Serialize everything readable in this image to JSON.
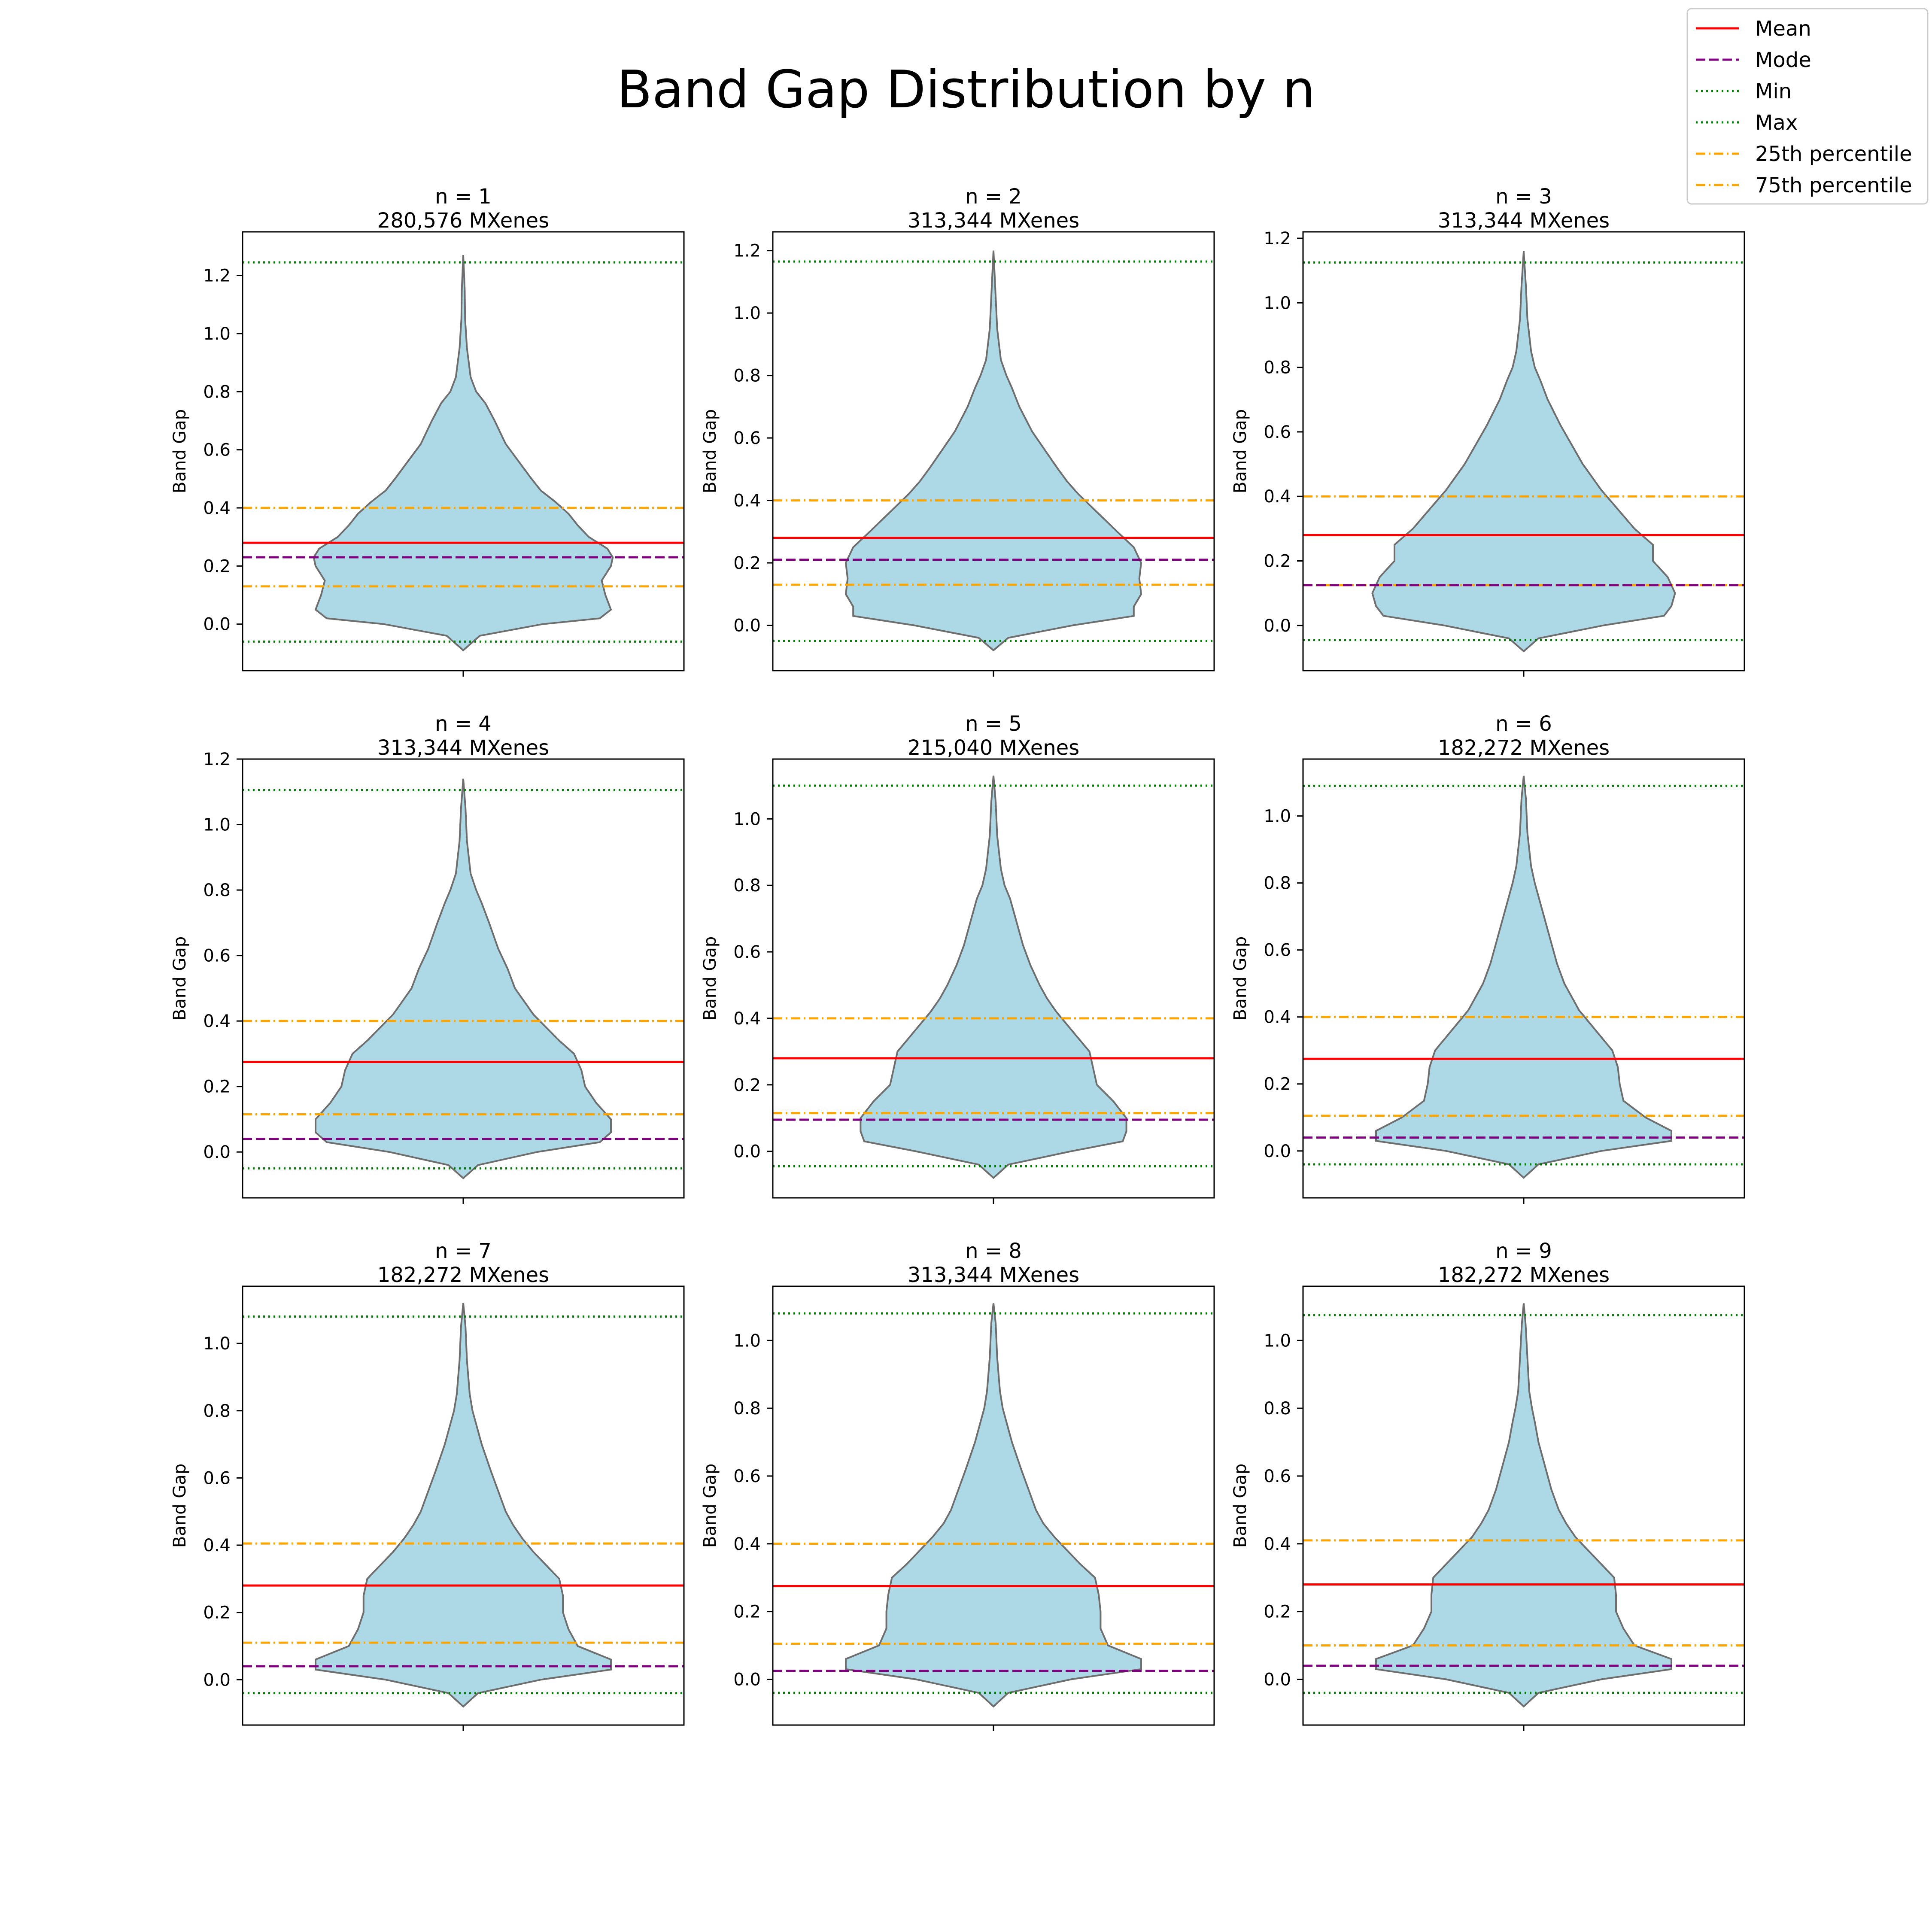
{
  "figure": {
    "title": "Band Gap Distribution by n"
  },
  "legend": {
    "placement": "top-right",
    "entries": [
      {
        "key": "mean",
        "label": "Mean",
        "color": "#ff0000",
        "style": "solid"
      },
      {
        "key": "mode",
        "label": "Mode",
        "color": "#800080",
        "style": "dashed"
      },
      {
        "key": "min",
        "label": "Min",
        "color": "#008000",
        "style": "dotted"
      },
      {
        "key": "max",
        "label": "Max",
        "color": "#008000",
        "style": "dotted"
      },
      {
        "key": "p25",
        "label": "25th percentile",
        "color": "#ffa500",
        "style": "dashdot"
      },
      {
        "key": "p75",
        "label": "75th percentile",
        "color": "#ffa500",
        "style": "dashdot"
      }
    ]
  },
  "colors": {
    "violin_fill": "#add8e6",
    "violin_edge": "#6e6e6e"
  },
  "chart_data": {
    "type": "violin",
    "grid": false,
    "ylabel": "Band Gap",
    "panels": [
      {
        "title": "n = 1",
        "subtitle": "280,576 MXenes",
        "ylim": [
          -0.16,
          1.35
        ],
        "yticks": [
          "0.0",
          "0.2",
          "0.4",
          "0.6",
          "0.8",
          "1.0",
          "1.2"
        ],
        "stats": {
          "mean": 0.28,
          "mode": 0.23,
          "min": -0.06,
          "max": 1.245,
          "p25": 0.13,
          "p75": 0.4
        },
        "density": [
          [
            -0.09,
            0.0
          ],
          [
            -0.04,
            0.09
          ],
          [
            0.0,
            0.43
          ],
          [
            0.02,
            0.74
          ],
          [
            0.05,
            0.8
          ],
          [
            0.1,
            0.77
          ],
          [
            0.15,
            0.75
          ],
          [
            0.2,
            0.8
          ],
          [
            0.23,
            0.81
          ],
          [
            0.26,
            0.78
          ],
          [
            0.3,
            0.68
          ],
          [
            0.34,
            0.62
          ],
          [
            0.38,
            0.57
          ],
          [
            0.42,
            0.5
          ],
          [
            0.46,
            0.42
          ],
          [
            0.5,
            0.37
          ],
          [
            0.56,
            0.3
          ],
          [
            0.62,
            0.23
          ],
          [
            0.7,
            0.17
          ],
          [
            0.76,
            0.12
          ],
          [
            0.8,
            0.07
          ],
          [
            0.85,
            0.04
          ],
          [
            0.95,
            0.02
          ],
          [
            1.05,
            0.01
          ],
          [
            1.15,
            0.008
          ],
          [
            1.27,
            0.0
          ]
        ]
      },
      {
        "title": "n = 2",
        "subtitle": "313,344 MXenes",
        "ylim": [
          -0.145,
          1.26
        ],
        "yticks": [
          "0.0",
          "0.2",
          "0.4",
          "0.6",
          "0.8",
          "1.0",
          "1.2"
        ],
        "stats": {
          "mean": 0.28,
          "mode": 0.21,
          "min": -0.05,
          "max": 1.165,
          "p25": 0.13,
          "p75": 0.4
        },
        "density": [
          [
            -0.08,
            0.0
          ],
          [
            -0.04,
            0.08
          ],
          [
            0.0,
            0.43
          ],
          [
            0.03,
            0.76
          ],
          [
            0.06,
            0.76
          ],
          [
            0.1,
            0.8
          ],
          [
            0.15,
            0.79
          ],
          [
            0.2,
            0.8
          ],
          [
            0.25,
            0.76
          ],
          [
            0.3,
            0.67
          ],
          [
            0.34,
            0.6
          ],
          [
            0.38,
            0.53
          ],
          [
            0.42,
            0.46
          ],
          [
            0.46,
            0.4
          ],
          [
            0.5,
            0.35
          ],
          [
            0.56,
            0.28
          ],
          [
            0.62,
            0.21
          ],
          [
            0.7,
            0.14
          ],
          [
            0.76,
            0.1
          ],
          [
            0.8,
            0.07
          ],
          [
            0.85,
            0.04
          ],
          [
            0.95,
            0.02
          ],
          [
            1.05,
            0.012
          ],
          [
            1.2,
            0.0
          ]
        ]
      },
      {
        "title": "n = 3",
        "subtitle": "313,344 MXenes",
        "ylim": [
          -0.14,
          1.22
        ],
        "yticks": [
          "0.0",
          "0.2",
          "0.4",
          "0.6",
          "0.8",
          "1.0",
          "1.2"
        ],
        "stats": {
          "mean": 0.28,
          "mode": 0.125,
          "min": -0.045,
          "max": 1.125,
          "p25": 0.125,
          "p75": 0.4
        },
        "density": [
          [
            -0.08,
            0.0
          ],
          [
            -0.04,
            0.08
          ],
          [
            0.0,
            0.43
          ],
          [
            0.03,
            0.76
          ],
          [
            0.06,
            0.8
          ],
          [
            0.1,
            0.82
          ],
          [
            0.15,
            0.78
          ],
          [
            0.2,
            0.7
          ],
          [
            0.25,
            0.7
          ],
          [
            0.3,
            0.6
          ],
          [
            0.34,
            0.54
          ],
          [
            0.38,
            0.48
          ],
          [
            0.42,
            0.42
          ],
          [
            0.46,
            0.37
          ],
          [
            0.5,
            0.32
          ],
          [
            0.56,
            0.26
          ],
          [
            0.62,
            0.2
          ],
          [
            0.7,
            0.13
          ],
          [
            0.76,
            0.09
          ],
          [
            0.8,
            0.06
          ],
          [
            0.85,
            0.04
          ],
          [
            0.95,
            0.02
          ],
          [
            1.05,
            0.012
          ],
          [
            1.16,
            0.0
          ]
        ]
      },
      {
        "title": "n = 4",
        "subtitle": "313,344 MXenes",
        "ylim": [
          -0.14,
          1.2
        ],
        "yticks": [
          "0.0",
          "0.2",
          "0.4",
          "0.6",
          "0.8",
          "1.0",
          "1.2"
        ],
        "stats": {
          "mean": 0.275,
          "mode": 0.04,
          "min": -0.05,
          "max": 1.105,
          "p25": 0.115,
          "p75": 0.4
        },
        "density": [
          [
            -0.08,
            0.0
          ],
          [
            -0.04,
            0.08
          ],
          [
            0.0,
            0.4
          ],
          [
            0.03,
            0.74
          ],
          [
            0.06,
            0.8
          ],
          [
            0.1,
            0.8
          ],
          [
            0.15,
            0.72
          ],
          [
            0.2,
            0.66
          ],
          [
            0.25,
            0.64
          ],
          [
            0.3,
            0.6
          ],
          [
            0.34,
            0.52
          ],
          [
            0.38,
            0.45
          ],
          [
            0.42,
            0.38
          ],
          [
            0.46,
            0.33
          ],
          [
            0.5,
            0.28
          ],
          [
            0.56,
            0.24
          ],
          [
            0.62,
            0.19
          ],
          [
            0.7,
            0.14
          ],
          [
            0.76,
            0.1
          ],
          [
            0.8,
            0.07
          ],
          [
            0.85,
            0.04
          ],
          [
            0.95,
            0.02
          ],
          [
            1.05,
            0.012
          ],
          [
            1.14,
            0.0
          ]
        ]
      },
      {
        "title": "n = 5",
        "subtitle": "215,040 MXenes",
        "ylim": [
          -0.14,
          1.18
        ],
        "yticks": [
          "0.0",
          "0.2",
          "0.4",
          "0.6",
          "0.8",
          "1.0"
        ],
        "stats": {
          "mean": 0.28,
          "mode": 0.095,
          "min": -0.045,
          "max": 1.1,
          "p25": 0.115,
          "p75": 0.4
        },
        "density": [
          [
            -0.08,
            0.0
          ],
          [
            -0.04,
            0.08
          ],
          [
            0.0,
            0.42
          ],
          [
            0.03,
            0.7
          ],
          [
            0.06,
            0.72
          ],
          [
            0.1,
            0.72
          ],
          [
            0.15,
            0.65
          ],
          [
            0.2,
            0.56
          ],
          [
            0.25,
            0.54
          ],
          [
            0.3,
            0.52
          ],
          [
            0.34,
            0.46
          ],
          [
            0.38,
            0.4
          ],
          [
            0.42,
            0.34
          ],
          [
            0.46,
            0.29
          ],
          [
            0.5,
            0.25
          ],
          [
            0.56,
            0.2
          ],
          [
            0.62,
            0.16
          ],
          [
            0.7,
            0.12
          ],
          [
            0.76,
            0.09
          ],
          [
            0.8,
            0.06
          ],
          [
            0.85,
            0.04
          ],
          [
            0.95,
            0.02
          ],
          [
            1.05,
            0.012
          ],
          [
            1.13,
            0.0
          ]
        ]
      },
      {
        "title": "n = 6",
        "subtitle": "182,272 MXenes",
        "ylim": [
          -0.14,
          1.17
        ],
        "yticks": [
          "0.0",
          "0.2",
          "0.4",
          "0.6",
          "0.8",
          "1.0"
        ],
        "stats": {
          "mean": 0.275,
          "mode": 0.04,
          "min": -0.04,
          "max": 1.09,
          "p25": 0.105,
          "p75": 0.4
        },
        "density": [
          [
            -0.08,
            0.0
          ],
          [
            -0.04,
            0.08
          ],
          [
            0.0,
            0.42
          ],
          [
            0.03,
            0.8
          ],
          [
            0.06,
            0.8
          ],
          [
            0.1,
            0.66
          ],
          [
            0.15,
            0.54
          ],
          [
            0.2,
            0.52
          ],
          [
            0.25,
            0.51
          ],
          [
            0.3,
            0.48
          ],
          [
            0.34,
            0.42
          ],
          [
            0.38,
            0.36
          ],
          [
            0.42,
            0.3
          ],
          [
            0.46,
            0.26
          ],
          [
            0.5,
            0.22
          ],
          [
            0.56,
            0.18
          ],
          [
            0.62,
            0.15
          ],
          [
            0.7,
            0.11
          ],
          [
            0.76,
            0.08
          ],
          [
            0.8,
            0.06
          ],
          [
            0.85,
            0.04
          ],
          [
            0.95,
            0.02
          ],
          [
            1.05,
            0.012
          ],
          [
            1.12,
            0.0
          ]
        ]
      },
      {
        "title": "n = 7",
        "subtitle": "182,272 MXenes",
        "ylim": [
          -0.135,
          1.17
        ],
        "yticks": [
          "0.0",
          "0.2",
          "0.4",
          "0.6",
          "0.8",
          "1.0"
        ],
        "stats": {
          "mean": 0.28,
          "mode": 0.04,
          "min": -0.04,
          "max": 1.08,
          "p25": 0.11,
          "p75": 0.405
        },
        "density": [
          [
            -0.08,
            0.0
          ],
          [
            -0.04,
            0.08
          ],
          [
            0.0,
            0.42
          ],
          [
            0.03,
            0.8
          ],
          [
            0.06,
            0.8
          ],
          [
            0.1,
            0.62
          ],
          [
            0.15,
            0.57
          ],
          [
            0.2,
            0.54
          ],
          [
            0.25,
            0.54
          ],
          [
            0.3,
            0.52
          ],
          [
            0.34,
            0.45
          ],
          [
            0.38,
            0.38
          ],
          [
            0.42,
            0.32
          ],
          [
            0.46,
            0.27
          ],
          [
            0.5,
            0.23
          ],
          [
            0.56,
            0.19
          ],
          [
            0.62,
            0.15
          ],
          [
            0.7,
            0.1
          ],
          [
            0.76,
            0.07
          ],
          [
            0.8,
            0.05
          ],
          [
            0.85,
            0.035
          ],
          [
            0.95,
            0.02
          ],
          [
            1.05,
            0.012
          ],
          [
            1.12,
            0.0
          ]
        ]
      },
      {
        "title": "n = 8",
        "subtitle": "313,344 MXenes",
        "ylim": [
          -0.135,
          1.16
        ],
        "yticks": [
          "0.0",
          "0.2",
          "0.4",
          "0.6",
          "0.8",
          "1.0"
        ],
        "stats": {
          "mean": 0.275,
          "mode": 0.025,
          "min": -0.04,
          "max": 1.08,
          "p25": 0.105,
          "p75": 0.4
        },
        "density": [
          [
            -0.08,
            0.0
          ],
          [
            -0.04,
            0.08
          ],
          [
            0.0,
            0.42
          ],
          [
            0.03,
            0.8
          ],
          [
            0.06,
            0.8
          ],
          [
            0.1,
            0.62
          ],
          [
            0.15,
            0.58
          ],
          [
            0.2,
            0.58
          ],
          [
            0.25,
            0.57
          ],
          [
            0.3,
            0.55
          ],
          [
            0.34,
            0.47
          ],
          [
            0.38,
            0.4
          ],
          [
            0.42,
            0.33
          ],
          [
            0.46,
            0.27
          ],
          [
            0.5,
            0.23
          ],
          [
            0.56,
            0.19
          ],
          [
            0.62,
            0.15
          ],
          [
            0.7,
            0.1
          ],
          [
            0.76,
            0.07
          ],
          [
            0.8,
            0.05
          ],
          [
            0.85,
            0.035
          ],
          [
            0.95,
            0.02
          ],
          [
            1.05,
            0.012
          ],
          [
            1.11,
            0.0
          ]
        ]
      },
      {
        "title": "n = 9",
        "subtitle": "182,272 MXenes",
        "ylim": [
          -0.135,
          1.16
        ],
        "yticks": [
          "0.0",
          "0.2",
          "0.4",
          "0.6",
          "0.8",
          "1.0"
        ],
        "stats": {
          "mean": 0.28,
          "mode": 0.04,
          "min": -0.04,
          "max": 1.075,
          "p25": 0.1,
          "p75": 0.41
        },
        "density": [
          [
            -0.08,
            0.0
          ],
          [
            -0.04,
            0.08
          ],
          [
            0.0,
            0.42
          ],
          [
            0.03,
            0.8
          ],
          [
            0.06,
            0.8
          ],
          [
            0.1,
            0.6
          ],
          [
            0.15,
            0.54
          ],
          [
            0.2,
            0.5
          ],
          [
            0.25,
            0.5
          ],
          [
            0.3,
            0.49
          ],
          [
            0.34,
            0.42
          ],
          [
            0.38,
            0.35
          ],
          [
            0.42,
            0.28
          ],
          [
            0.46,
            0.23
          ],
          [
            0.5,
            0.19
          ],
          [
            0.56,
            0.15
          ],
          [
            0.62,
            0.12
          ],
          [
            0.7,
            0.08
          ],
          [
            0.76,
            0.06
          ],
          [
            0.8,
            0.045
          ],
          [
            0.85,
            0.03
          ],
          [
            0.95,
            0.02
          ],
          [
            1.05,
            0.01
          ],
          [
            1.11,
            0.0
          ]
        ]
      }
    ]
  }
}
